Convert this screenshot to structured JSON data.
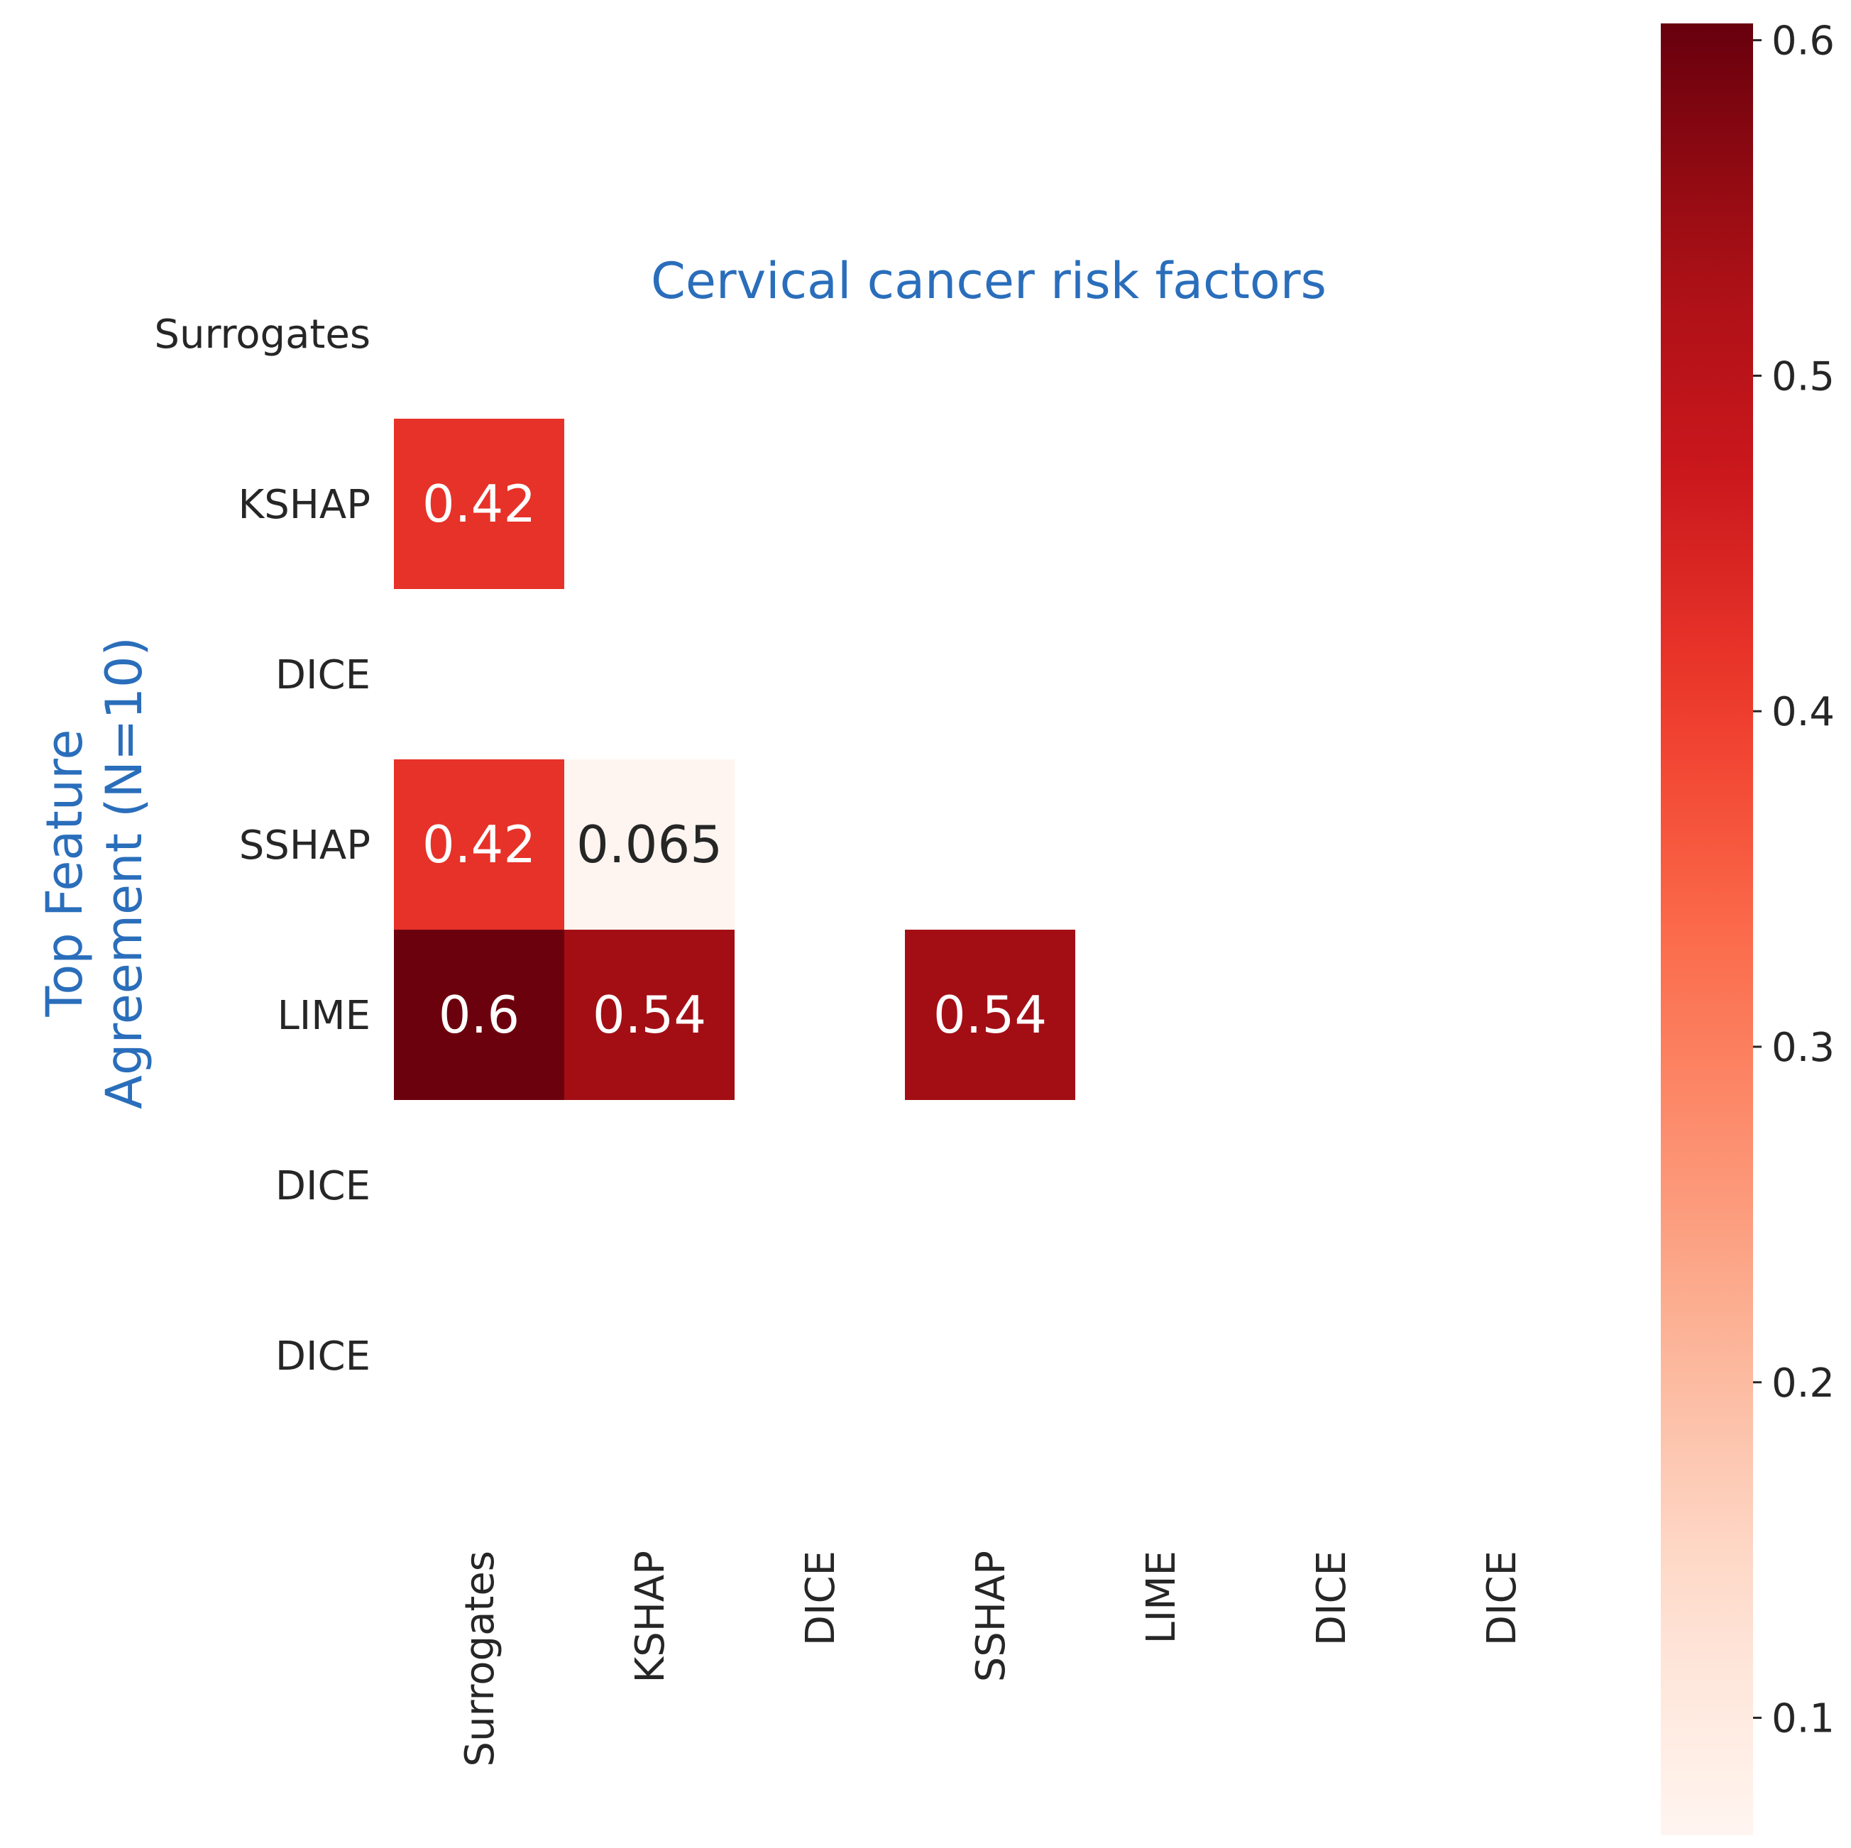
{
  "chart_data": {
    "type": "heatmap",
    "title": "Cervical cancer risk factors",
    "ylabel": "Top Feature\nAgreement (N=10)",
    "xlabel": "",
    "x_labels": [
      "Surrogates",
      "KSHAP",
      "DICE",
      "SSHAP",
      "LIME",
      "DICE",
      "DICE"
    ],
    "y_labels": [
      "Surrogates",
      "KSHAP",
      "DICE",
      "SSHAP",
      "LIME",
      "DICE",
      "DICE"
    ],
    "cells": [
      {
        "row": 1,
        "col": 0,
        "value": 0.42,
        "label": "0.42"
      },
      {
        "row": 3,
        "col": 0,
        "value": 0.42,
        "label": "0.42"
      },
      {
        "row": 3,
        "col": 1,
        "value": 0.065,
        "label": "0.065"
      },
      {
        "row": 4,
        "col": 0,
        "value": 0.6,
        "label": "0.6"
      },
      {
        "row": 4,
        "col": 1,
        "value": 0.54,
        "label": "0.54"
      },
      {
        "row": 4,
        "col": 3,
        "value": 0.54,
        "label": "0.54"
      }
    ],
    "colormap": "Reds",
    "vmin": 0.065,
    "vmax": 0.605,
    "colorbar_ticks": [
      0.1,
      0.2,
      0.3,
      0.4,
      0.5,
      0.6
    ],
    "colorbar_tick_labels": [
      "0.1",
      "0.2",
      "0.3",
      "0.4",
      "0.5",
      "0.6"
    ],
    "title_color": "#2a6ebb",
    "ylabel_color": "#2a6ebb",
    "text_color": "#262626"
  }
}
